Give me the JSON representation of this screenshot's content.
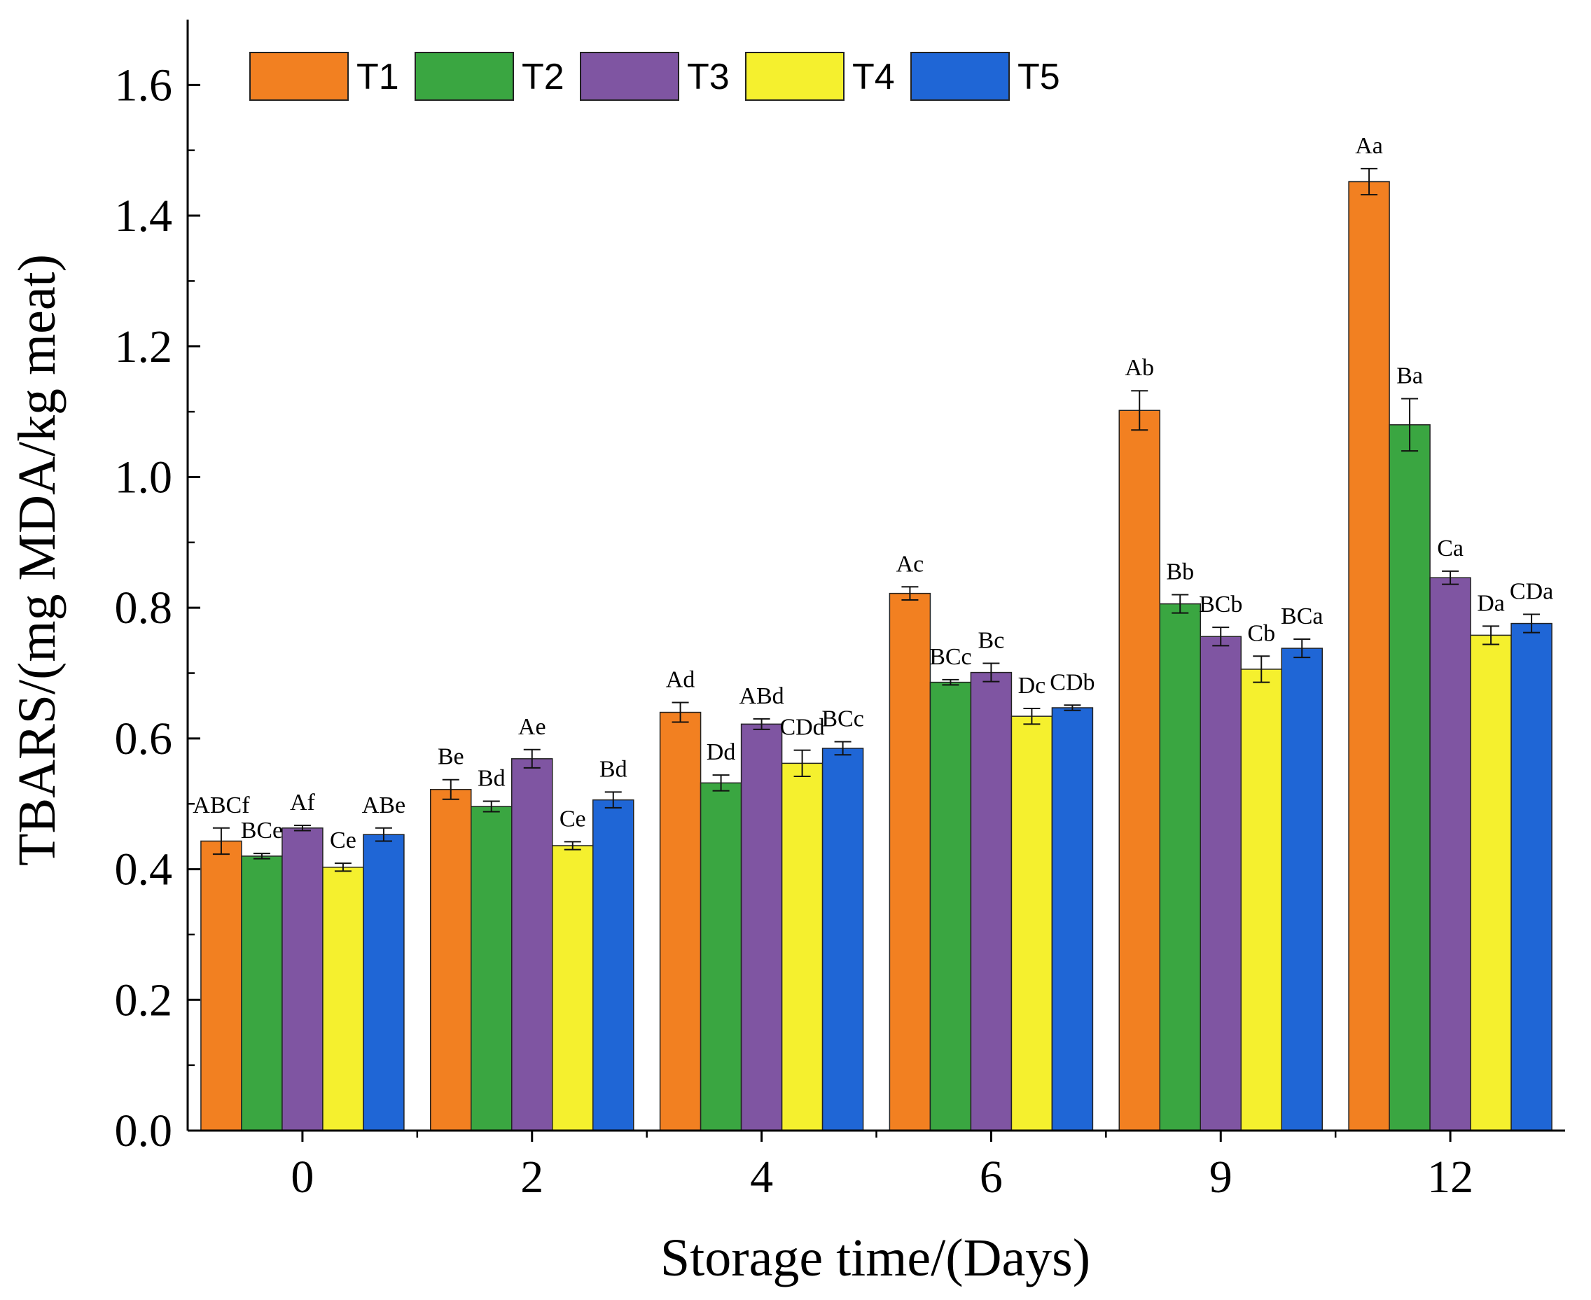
{
  "chart_data": {
    "type": "bar",
    "title": "",
    "xlabel": "Storage time/(Days)",
    "ylabel": "TBARS/(mg MDA/kg meat)",
    "ylim": [
      0,
      1.7
    ],
    "yticks": [
      "0.0",
      "0.2",
      "0.4",
      "0.6",
      "0.8",
      "1.0",
      "1.2",
      "1.4",
      "1.6"
    ],
    "categories": [
      "0",
      "2",
      "4",
      "6",
      "9",
      "12"
    ],
    "legend_position": "top-left",
    "grid": false,
    "series": [
      {
        "name": "T1",
        "color": "#f28021",
        "values": [
          0.443,
          0.522,
          0.64,
          0.822,
          1.102,
          1.452
        ],
        "errors": [
          0.02,
          0.015,
          0.015,
          0.01,
          0.03,
          0.02
        ],
        "labels": [
          "ABCf",
          "Be",
          "Ad",
          "Ac",
          "Ab",
          "Aa"
        ]
      },
      {
        "name": "T2",
        "color": "#3aa641",
        "values": [
          0.42,
          0.496,
          0.532,
          0.686,
          0.806,
          1.08
        ],
        "errors": [
          0.004,
          0.008,
          0.012,
          0.004,
          0.014,
          0.04
        ],
        "labels": [
          "BCe",
          "Bd",
          "Dd",
          "BCc",
          "Bb",
          "Ba"
        ]
      },
      {
        "name": "T3",
        "color": "#7f55a2",
        "values": [
          0.463,
          0.569,
          0.622,
          0.701,
          0.756,
          0.846
        ],
        "errors": [
          0.004,
          0.014,
          0.008,
          0.014,
          0.014,
          0.01
        ],
        "labels": [
          "Af",
          "Ae",
          "ABd",
          "Bc",
          "BCb",
          "Ca"
        ]
      },
      {
        "name": "T4",
        "color": "#f5f02e",
        "values": [
          0.403,
          0.436,
          0.562,
          0.634,
          0.706,
          0.758
        ],
        "errors": [
          0.006,
          0.006,
          0.02,
          0.012,
          0.02,
          0.014
        ],
        "labels": [
          "Ce",
          "Ce",
          "CDd",
          "Dc",
          "Cb",
          "Da"
        ]
      },
      {
        "name": "T5",
        "color": "#1f66d6",
        "values": [
          0.453,
          0.506,
          0.585,
          0.647,
          0.738,
          0.776
        ],
        "errors": [
          0.01,
          0.012,
          0.01,
          0.004,
          0.014,
          0.014
        ],
        "labels": [
          "ABe",
          "Bd",
          "BCc",
          "CDb",
          "BCa",
          "CDa"
        ]
      }
    ]
  }
}
